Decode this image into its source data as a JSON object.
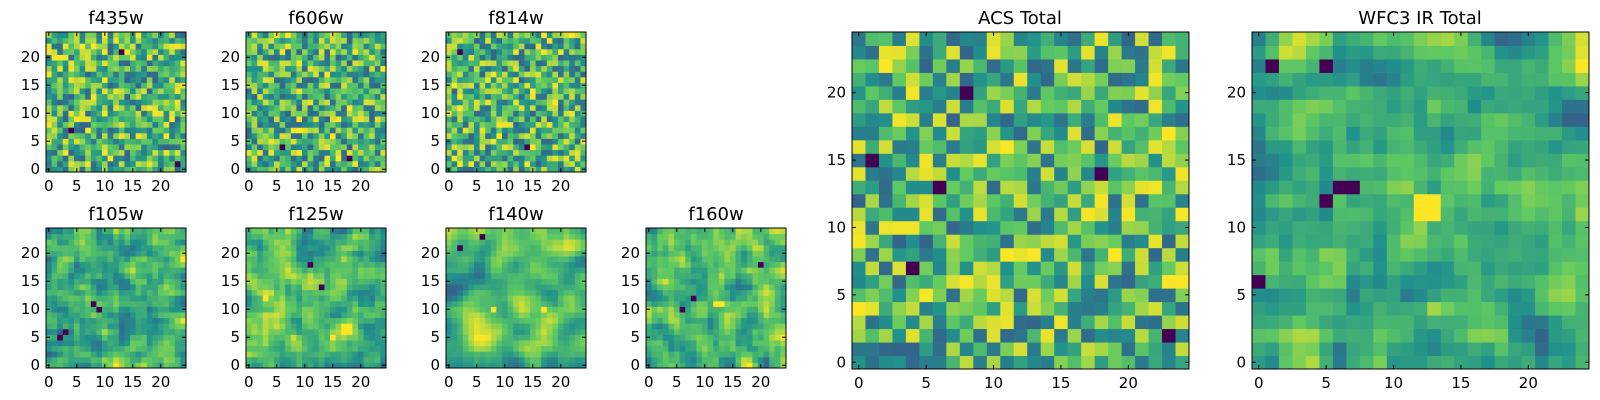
{
  "figure": {
    "panel_titles": {
      "f435w": "f435w",
      "f606w": "f606w",
      "f814w": "f814w",
      "f105w": "f105w",
      "f125w": "f125w",
      "f140w": "f140w",
      "f160w": "f160w",
      "acs_total": "ACS Total",
      "wfc3_total": "WFC3 IR Total"
    }
  },
  "colormap": [
    "#440154",
    "#3b528b",
    "#21918c",
    "#5ec962",
    "#fde725"
  ],
  "chart_data": [
    {
      "type": "heatmap",
      "title": "f435w",
      "grid_size": 25,
      "xlim": [
        0,
        25
      ],
      "ylim": [
        0,
        25
      ],
      "x_ticks": [
        0,
        5,
        10,
        15,
        20
      ],
      "y_ticks": [
        0,
        5,
        10,
        15,
        20
      ],
      "texture": "pixel-noise",
      "seed": 11,
      "smooth": 0,
      "dark_spots": [
        [
          4,
          7
        ],
        [
          23,
          1
        ],
        [
          13,
          21
        ]
      ],
      "bright_spots": []
    },
    {
      "type": "heatmap",
      "title": "f606w",
      "grid_size": 25,
      "xlim": [
        0,
        25
      ],
      "ylim": [
        0,
        25
      ],
      "x_ticks": [
        0,
        5,
        10,
        15,
        20
      ],
      "y_ticks": [
        0,
        5,
        10,
        15,
        20
      ],
      "texture": "pixel-noise",
      "seed": 23,
      "smooth": 0,
      "dark_spots": [
        [
          6,
          4
        ],
        [
          18,
          2
        ]
      ],
      "bright_spots": []
    },
    {
      "type": "heatmap",
      "title": "f814w",
      "grid_size": 25,
      "xlim": [
        0,
        25
      ],
      "ylim": [
        0,
        25
      ],
      "x_ticks": [
        0,
        5,
        10,
        15,
        20
      ],
      "y_ticks": [
        0,
        5,
        10,
        15,
        20
      ],
      "texture": "pixel-noise",
      "seed": 37,
      "smooth": 0,
      "dark_spots": [
        [
          2,
          21
        ],
        [
          14,
          4
        ]
      ],
      "bright_spots": []
    },
    {
      "type": "heatmap",
      "title": "f105w",
      "grid_size": 25,
      "xlim": [
        0,
        25
      ],
      "ylim": [
        0,
        25
      ],
      "x_ticks": [
        0,
        5,
        10,
        15,
        20
      ],
      "y_ticks": [
        0,
        5,
        10,
        15,
        20
      ],
      "texture": "smooth-noise",
      "seed": 41,
      "smooth": 1,
      "dark_spots": [
        [
          2,
          5
        ],
        [
          3,
          6
        ],
        [
          8,
          11
        ],
        [
          9,
          10
        ]
      ],
      "bright_spots": []
    },
    {
      "type": "heatmap",
      "title": "f125w",
      "grid_size": 25,
      "xlim": [
        0,
        25
      ],
      "ylim": [
        0,
        25
      ],
      "x_ticks": [
        0,
        5,
        10,
        15,
        20
      ],
      "y_ticks": [
        0,
        5,
        10,
        15,
        20
      ],
      "texture": "smooth-noise",
      "seed": 53,
      "smooth": 1,
      "dark_spots": [
        [
          11,
          18
        ],
        [
          13,
          14
        ]
      ],
      "bright_spots": [
        [
          15,
          5
        ],
        [
          3,
          12
        ]
      ]
    },
    {
      "type": "heatmap",
      "title": "f140w",
      "grid_size": 25,
      "xlim": [
        0,
        25
      ],
      "ylim": [
        0,
        25
      ],
      "x_ticks": [
        0,
        5,
        10,
        15,
        20
      ],
      "y_ticks": [
        0,
        5,
        10,
        15,
        20
      ],
      "texture": "smooth-noise",
      "seed": 67,
      "smooth": 2,
      "dark_spots": [
        [
          6,
          23
        ],
        [
          2,
          21
        ]
      ],
      "bright_spots": [
        [
          8,
          10
        ],
        [
          17,
          10
        ]
      ]
    },
    {
      "type": "heatmap",
      "title": "f160w",
      "grid_size": 25,
      "xlim": [
        0,
        25
      ],
      "ylim": [
        0,
        25
      ],
      "x_ticks": [
        0,
        5,
        10,
        15,
        20
      ],
      "y_ticks": [
        0,
        5,
        10,
        15,
        20
      ],
      "texture": "smooth-noise",
      "seed": 79,
      "smooth": 1,
      "dark_spots": [
        [
          6,
          10
        ],
        [
          8,
          12
        ],
        [
          20,
          18
        ]
      ],
      "bright_spots": [
        [
          12,
          11
        ],
        [
          13,
          11
        ]
      ]
    },
    {
      "type": "heatmap",
      "title": "ACS Total",
      "grid_size": 25,
      "xlim": [
        0,
        25
      ],
      "ylim": [
        0,
        25
      ],
      "x_ticks": [
        0,
        5,
        10,
        15,
        20
      ],
      "y_ticks": [
        0,
        5,
        10,
        15,
        20
      ],
      "texture": "pixel-noise",
      "seed": 97,
      "smooth": 0,
      "dark_spots": [
        [
          8,
          20
        ],
        [
          1,
          15
        ],
        [
          6,
          13
        ],
        [
          4,
          7
        ],
        [
          23,
          2
        ],
        [
          18,
          14
        ]
      ],
      "bright_spots": []
    },
    {
      "type": "heatmap",
      "title": "WFC3 IR Total",
      "grid_size": 25,
      "xlim": [
        0,
        25
      ],
      "ylim": [
        0,
        25
      ],
      "x_ticks": [
        0,
        5,
        10,
        15,
        20
      ],
      "y_ticks": [
        0,
        5,
        10,
        15,
        20
      ],
      "texture": "smooth-noise",
      "seed": 113,
      "smooth": 1,
      "dark_spots": [
        [
          6,
          13
        ],
        [
          5,
          12
        ],
        [
          7,
          13
        ],
        [
          1,
          22
        ],
        [
          0,
          6
        ],
        [
          5,
          22
        ]
      ],
      "bright_spots": [
        [
          12,
          12
        ],
        [
          13,
          11
        ],
        [
          12,
          11
        ],
        [
          13,
          12
        ]
      ]
    }
  ]
}
